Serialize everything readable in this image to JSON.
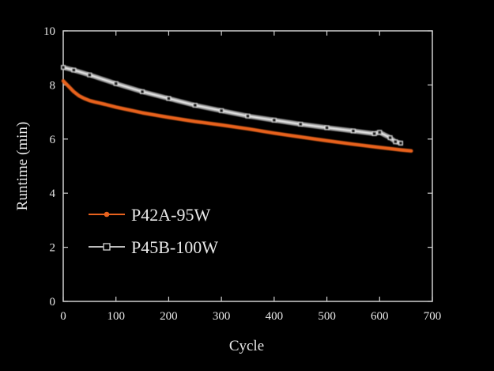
{
  "chart_data": {
    "type": "line",
    "xlabel": "Cycle",
    "ylabel": "Runtime (min)",
    "xlim": [
      0,
      700
    ],
    "ylim": [
      0,
      10
    ],
    "xticks": [
      0,
      100,
      200,
      300,
      400,
      500,
      600,
      700
    ],
    "yticks": [
      0,
      2,
      4,
      6,
      8,
      10
    ],
    "grid": false,
    "legend_position": "lower-left",
    "background": "#000000",
    "axis_color": "#d0d0d0",
    "series": [
      {
        "name": "P42A-95W",
        "color": "#e8621e",
        "marker": "dot",
        "x": [
          0,
          10,
          20,
          30,
          40,
          50,
          60,
          80,
          100,
          150,
          200,
          250,
          300,
          350,
          400,
          450,
          500,
          550,
          600,
          640,
          660
        ],
        "y": [
          8.15,
          7.95,
          7.75,
          7.6,
          7.5,
          7.42,
          7.37,
          7.28,
          7.18,
          6.97,
          6.8,
          6.65,
          6.52,
          6.38,
          6.22,
          6.08,
          5.94,
          5.81,
          5.69,
          5.6,
          5.56
        ]
      },
      {
        "name": "P45B-100W",
        "color": "#bdbdbd",
        "marker": "open-square",
        "x": [
          0,
          20,
          50,
          100,
          150,
          200,
          250,
          300,
          350,
          400,
          450,
          500,
          550,
          590,
          600,
          620,
          630,
          640
        ],
        "y": [
          8.65,
          8.55,
          8.37,
          8.05,
          7.75,
          7.5,
          7.25,
          7.05,
          6.85,
          6.7,
          6.55,
          6.42,
          6.3,
          6.2,
          6.25,
          6.05,
          5.9,
          5.85
        ]
      }
    ]
  }
}
